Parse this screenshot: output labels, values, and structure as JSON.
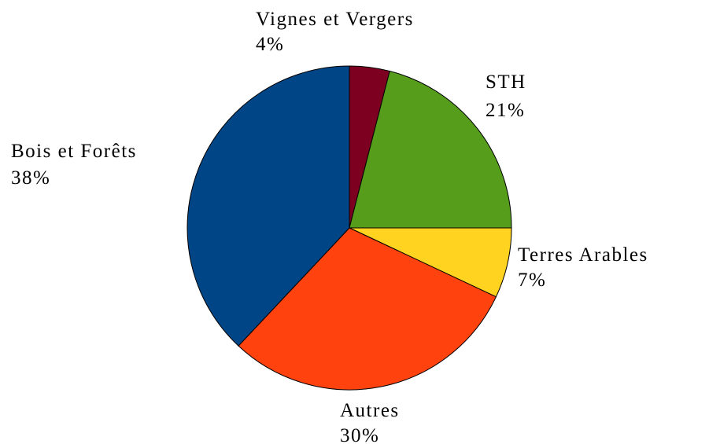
{
  "chart_data": {
    "type": "pie",
    "categories": [
      "Vignes et Vergers",
      "STH",
      "Terres Arables",
      "Autres",
      "Bois et Forêts"
    ],
    "values": [
      4,
      21,
      7,
      30,
      38
    ],
    "value_labels": [
      "4%",
      "21%",
      "7%",
      "30%",
      "38%"
    ],
    "colors": [
      "#7e0021",
      "#579d1c",
      "#ffd320",
      "#ff420e",
      "#004586"
    ]
  }
}
